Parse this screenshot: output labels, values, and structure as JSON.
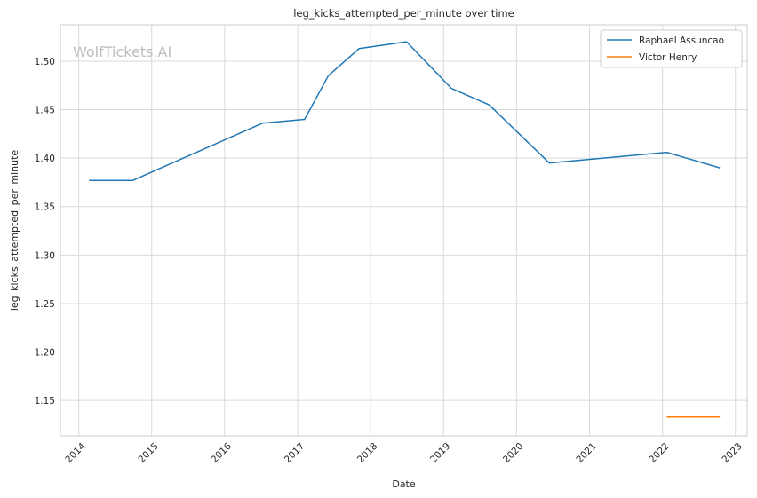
{
  "chart_data": {
    "type": "line",
    "title": "leg_kicks_attempted_per_minute over time",
    "xlabel": "Date",
    "ylabel": "leg_kicks_attempted_per_minute",
    "watermark": "WolfTickets.AI",
    "xlim": [
      "2013-10-01",
      "2023-03-01"
    ],
    "ylim": [
      1.1135,
      1.5375
    ],
    "x_ticks": [
      "2014",
      "2015",
      "2016",
      "2017",
      "2018",
      "2019",
      "2020",
      "2021",
      "2022",
      "2023"
    ],
    "y_ticks": [
      1.15,
      1.2,
      1.25,
      1.3,
      1.35,
      1.4,
      1.45,
      1.5
    ],
    "grid": true,
    "legend_position": "top-right",
    "series": [
      {
        "name": "Raphael Assuncao",
        "color": "#1f77b4",
        "x": [
          "2014-02-22",
          "2014-09-27",
          "2016-07-09",
          "2017-02-04",
          "2017-06-03",
          "2017-11-04",
          "2018-06-30",
          "2019-02-09",
          "2019-08-17",
          "2020-06-13",
          "2022-01-22",
          "2022-10-15"
        ],
        "values": [
          1.377,
          1.377,
          1.436,
          1.44,
          1.485,
          1.513,
          1.52,
          1.472,
          1.455,
          1.395,
          1.406,
          1.39
        ]
      },
      {
        "name": "Victor Henry",
        "color": "#ff7f0e",
        "x": [
          "2022-01-22",
          "2022-10-15"
        ],
        "values": [
          1.133,
          1.133
        ]
      }
    ]
  }
}
